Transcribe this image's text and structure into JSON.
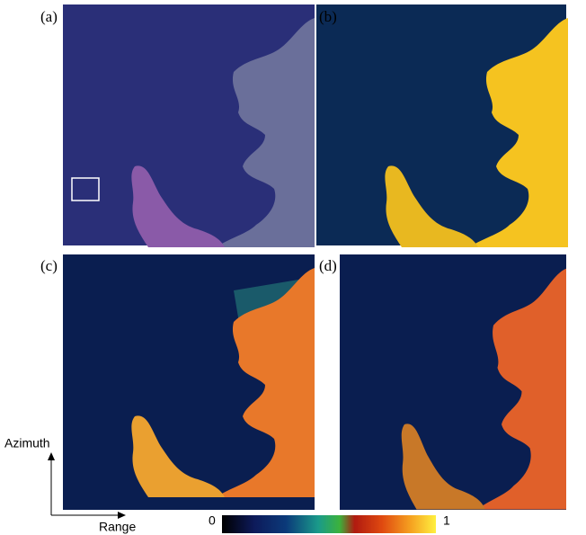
{
  "panels": [
    {
      "label": "(a)"
    },
    {
      "label": "(b)"
    },
    {
      "label": "(c)"
    },
    {
      "label": "(d)"
    }
  ],
  "axes": {
    "vertical": "Azimuth",
    "horizontal": "Range"
  },
  "colorbar": {
    "min": 0,
    "max": 1
  }
}
